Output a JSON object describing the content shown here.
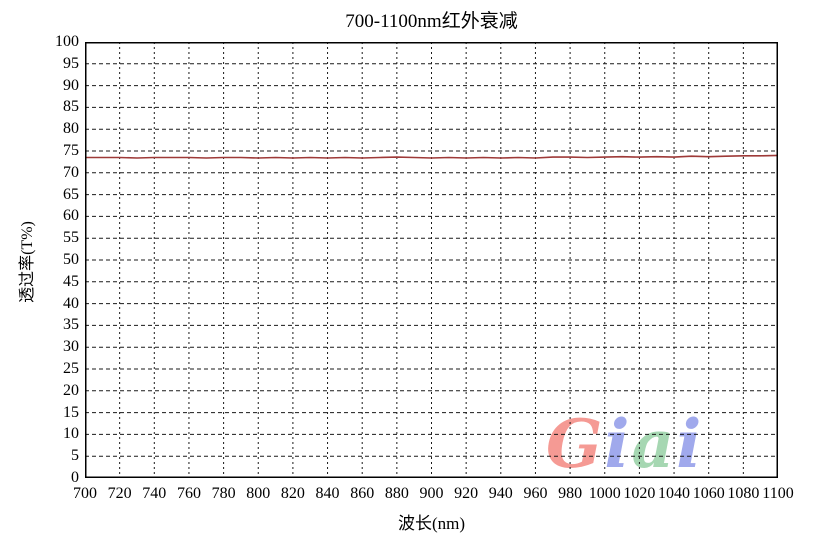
{
  "chart_data": {
    "type": "line",
    "title": "700-1100nm红外衰减",
    "xlabel": "波长(nm)",
    "ylabel": "透过率(T%)",
    "xlim": [
      700,
      1100
    ],
    "ylim": [
      0,
      100
    ],
    "x_ticks": [
      700,
      720,
      740,
      760,
      780,
      800,
      820,
      840,
      860,
      880,
      900,
      920,
      940,
      960,
      980,
      1000,
      1020,
      1040,
      1060,
      1080,
      1100
    ],
    "y_ticks": [
      0,
      5,
      10,
      15,
      20,
      25,
      30,
      35,
      40,
      45,
      50,
      55,
      60,
      65,
      70,
      75,
      80,
      85,
      90,
      95,
      100
    ],
    "grid": "dashed",
    "legend": "none",
    "line_color": "#9e3a38",
    "border_color": "#000000",
    "grid_color": "#1a1a1a",
    "series": [
      {
        "name": "透过率",
        "x": [
          700,
          710,
          720,
          730,
          740,
          750,
          760,
          770,
          780,
          790,
          800,
          810,
          820,
          830,
          840,
          850,
          860,
          870,
          880,
          890,
          900,
          910,
          920,
          930,
          940,
          950,
          960,
          970,
          980,
          990,
          1000,
          1010,
          1020,
          1030,
          1040,
          1050,
          1060,
          1070,
          1080,
          1090,
          1100
        ],
        "y": [
          73.5,
          73.5,
          73.5,
          73.4,
          73.5,
          73.5,
          73.5,
          73.4,
          73.5,
          73.5,
          73.4,
          73.5,
          73.4,
          73.5,
          73.4,
          73.5,
          73.4,
          73.5,
          73.6,
          73.5,
          73.4,
          73.5,
          73.4,
          73.5,
          73.4,
          73.5,
          73.4,
          73.6,
          73.6,
          73.5,
          73.6,
          73.7,
          73.6,
          73.7,
          73.6,
          73.8,
          73.7,
          73.8,
          73.9,
          73.9,
          74.0
        ]
      }
    ]
  },
  "watermark": {
    "text": "Giai",
    "letters": [
      {
        "char": "G",
        "color": "#f59a94"
      },
      {
        "char": "i",
        "color": "#a0a9ec"
      },
      {
        "char": "a",
        "color": "#a6d7b2"
      },
      {
        "char": "i",
        "color": "#a0a9ec"
      }
    ]
  }
}
